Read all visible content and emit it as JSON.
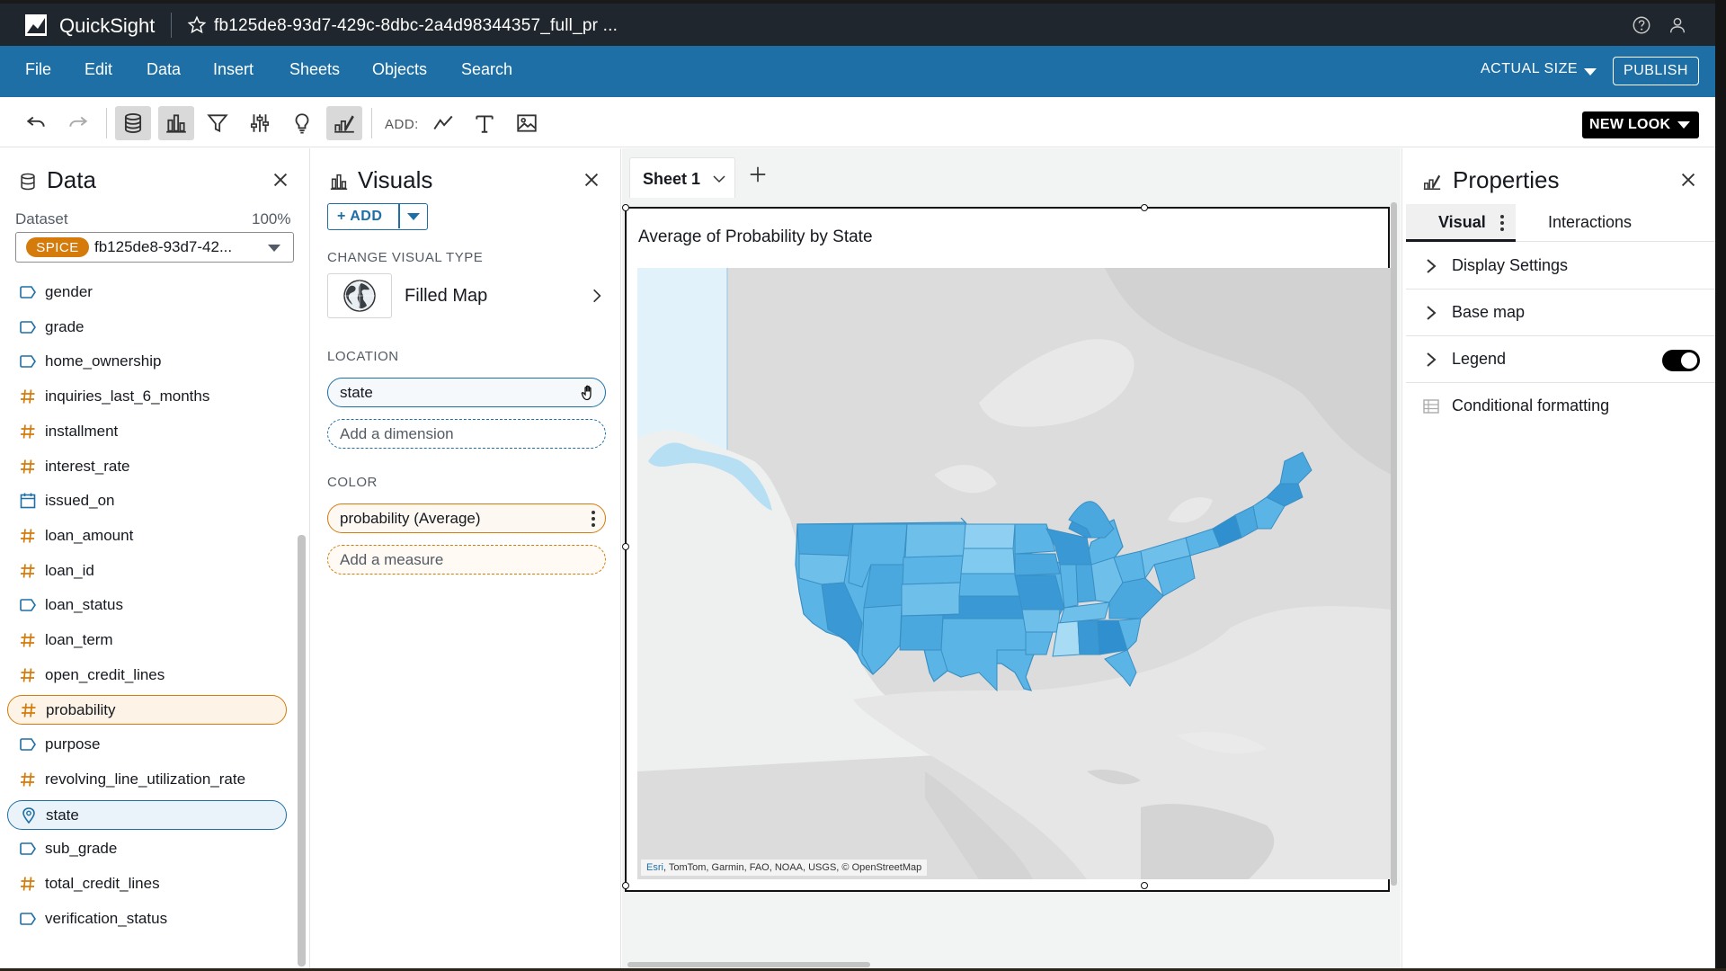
{
  "app": {
    "name": "QuickSight",
    "doc_title": "fb125de8-93d7-429c-8dbc-2a4d98344357_full_pr ..."
  },
  "menu": {
    "items": [
      "File",
      "Edit",
      "Data",
      "Insert",
      "Sheets",
      "Objects",
      "Search"
    ],
    "actual_size": "ACTUAL SIZE",
    "publish": "PUBLISH"
  },
  "toolbar": {
    "add_label": "ADD:",
    "new_look": "NEW LOOK"
  },
  "data_panel": {
    "title": "Data",
    "dataset_label": "Dataset",
    "dataset_pct": "100%",
    "spice": "SPICE",
    "dataset_name": "fb125de8-93d7-42...",
    "fields": [
      {
        "name": "gender",
        "type": "dimension"
      },
      {
        "name": "grade",
        "type": "dimension"
      },
      {
        "name": "home_ownership",
        "type": "dimension"
      },
      {
        "name": "inquiries_last_6_months",
        "type": "measure"
      },
      {
        "name": "installment",
        "type": "measure"
      },
      {
        "name": "interest_rate",
        "type": "measure"
      },
      {
        "name": "issued_on",
        "type": "date"
      },
      {
        "name": "loan_amount",
        "type": "measure"
      },
      {
        "name": "loan_id",
        "type": "measure"
      },
      {
        "name": "loan_status",
        "type": "dimension"
      },
      {
        "name": "loan_term",
        "type": "measure"
      },
      {
        "name": "open_credit_lines",
        "type": "measure"
      },
      {
        "name": "probability",
        "type": "measure",
        "selected": "orange"
      },
      {
        "name": "purpose",
        "type": "dimension"
      },
      {
        "name": "revolving_line_utilization_rate",
        "type": "measure"
      },
      {
        "name": "state",
        "type": "geo",
        "selected": "blue"
      },
      {
        "name": "sub_grade",
        "type": "dimension"
      },
      {
        "name": "total_credit_lines",
        "type": "measure"
      },
      {
        "name": "verification_status",
        "type": "dimension"
      }
    ]
  },
  "visuals_panel": {
    "title": "Visuals",
    "add": "ADD",
    "change_visual_type": "CHANGE VISUAL TYPE",
    "visual_type": "Filled Map",
    "location_label": "LOCATION",
    "location_field": "state",
    "add_dimension": "Add a dimension",
    "color_label": "COLOR",
    "color_field": "probability (Average)",
    "add_measure": "Add a measure"
  },
  "canvas": {
    "sheet_name": "Sheet 1",
    "visual_title": "Average of Probability by State",
    "attribution_esri": "Esri",
    "attribution_rest": ", TomTom, Garmin, FAO, NOAA, USGS, © OpenStreetMap"
  },
  "properties": {
    "title": "Properties",
    "tab_visual": "Visual",
    "tab_interactions": "Interactions",
    "rows": [
      "Display Settings",
      "Base map",
      "Legend",
      "Conditional formatting"
    ],
    "legend_on": true
  },
  "colors": {
    "titlebar": "#1f262d",
    "menubar": "#1d6fa5",
    "accent_orange": "#d47b0b",
    "map_fill": "#5ab4e5"
  }
}
